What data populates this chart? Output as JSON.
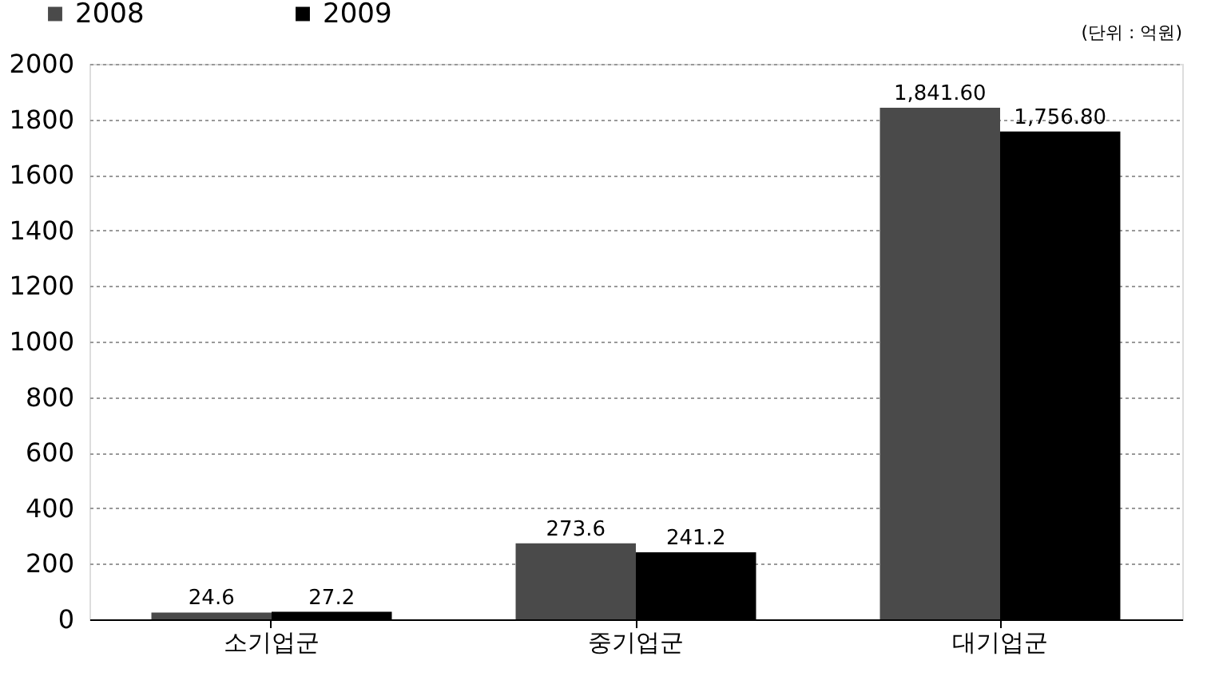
{
  "chart_data": {
    "type": "bar",
    "categories": [
      "소기업군",
      "중기업군",
      "대기업군"
    ],
    "series": [
      {
        "name": "2008",
        "color": "#4a4a4a",
        "values": [
          24.6,
          273.6,
          1841.6
        ],
        "value_labels": [
          "24.6",
          "273.6",
          "1,841.60"
        ]
      },
      {
        "name": "2009",
        "color": "#000000",
        "values": [
          27.2,
          241.2,
          1756.8
        ],
        "value_labels": [
          "27.2",
          "241.2",
          "1,756.80"
        ]
      }
    ],
    "annotations": [
      "(단위 : 억원)"
    ],
    "ylim": [
      0,
      2000
    ],
    "yticks": [
      0,
      200,
      400,
      600,
      800,
      1000,
      1200,
      1400,
      1600,
      1800,
      2000
    ],
    "grid": "y",
    "legend": "top left"
  }
}
